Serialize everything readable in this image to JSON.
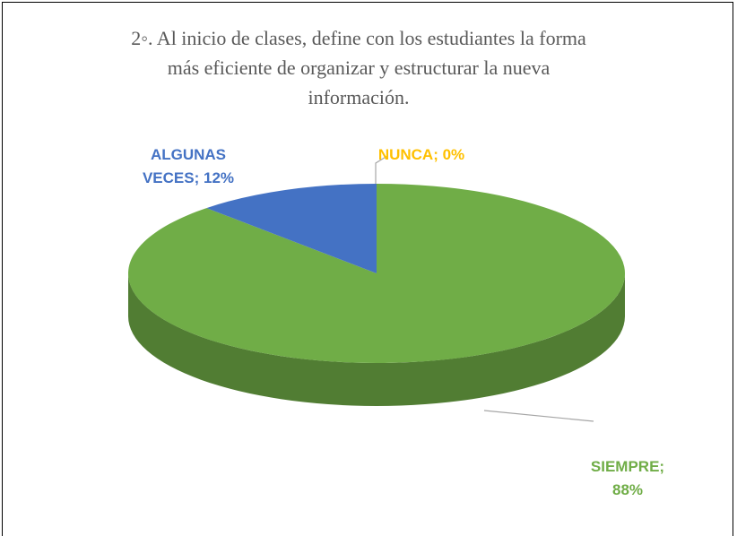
{
  "chart_data": {
    "type": "pie",
    "title": "2◦. Al inicio de clases, define con los estudiantes la forma más eficiente de organizar y estructurar la nueva información.",
    "values": [
      88,
      12,
      0
    ],
    "value_labels": [
      "SIEMPRE; 88%",
      "ALGUNAS VECES; 12%",
      "NUNCA; 0%"
    ],
    "colors": [
      "#70ad47",
      "#4472c4",
      "#ffc000"
    ]
  }
}
